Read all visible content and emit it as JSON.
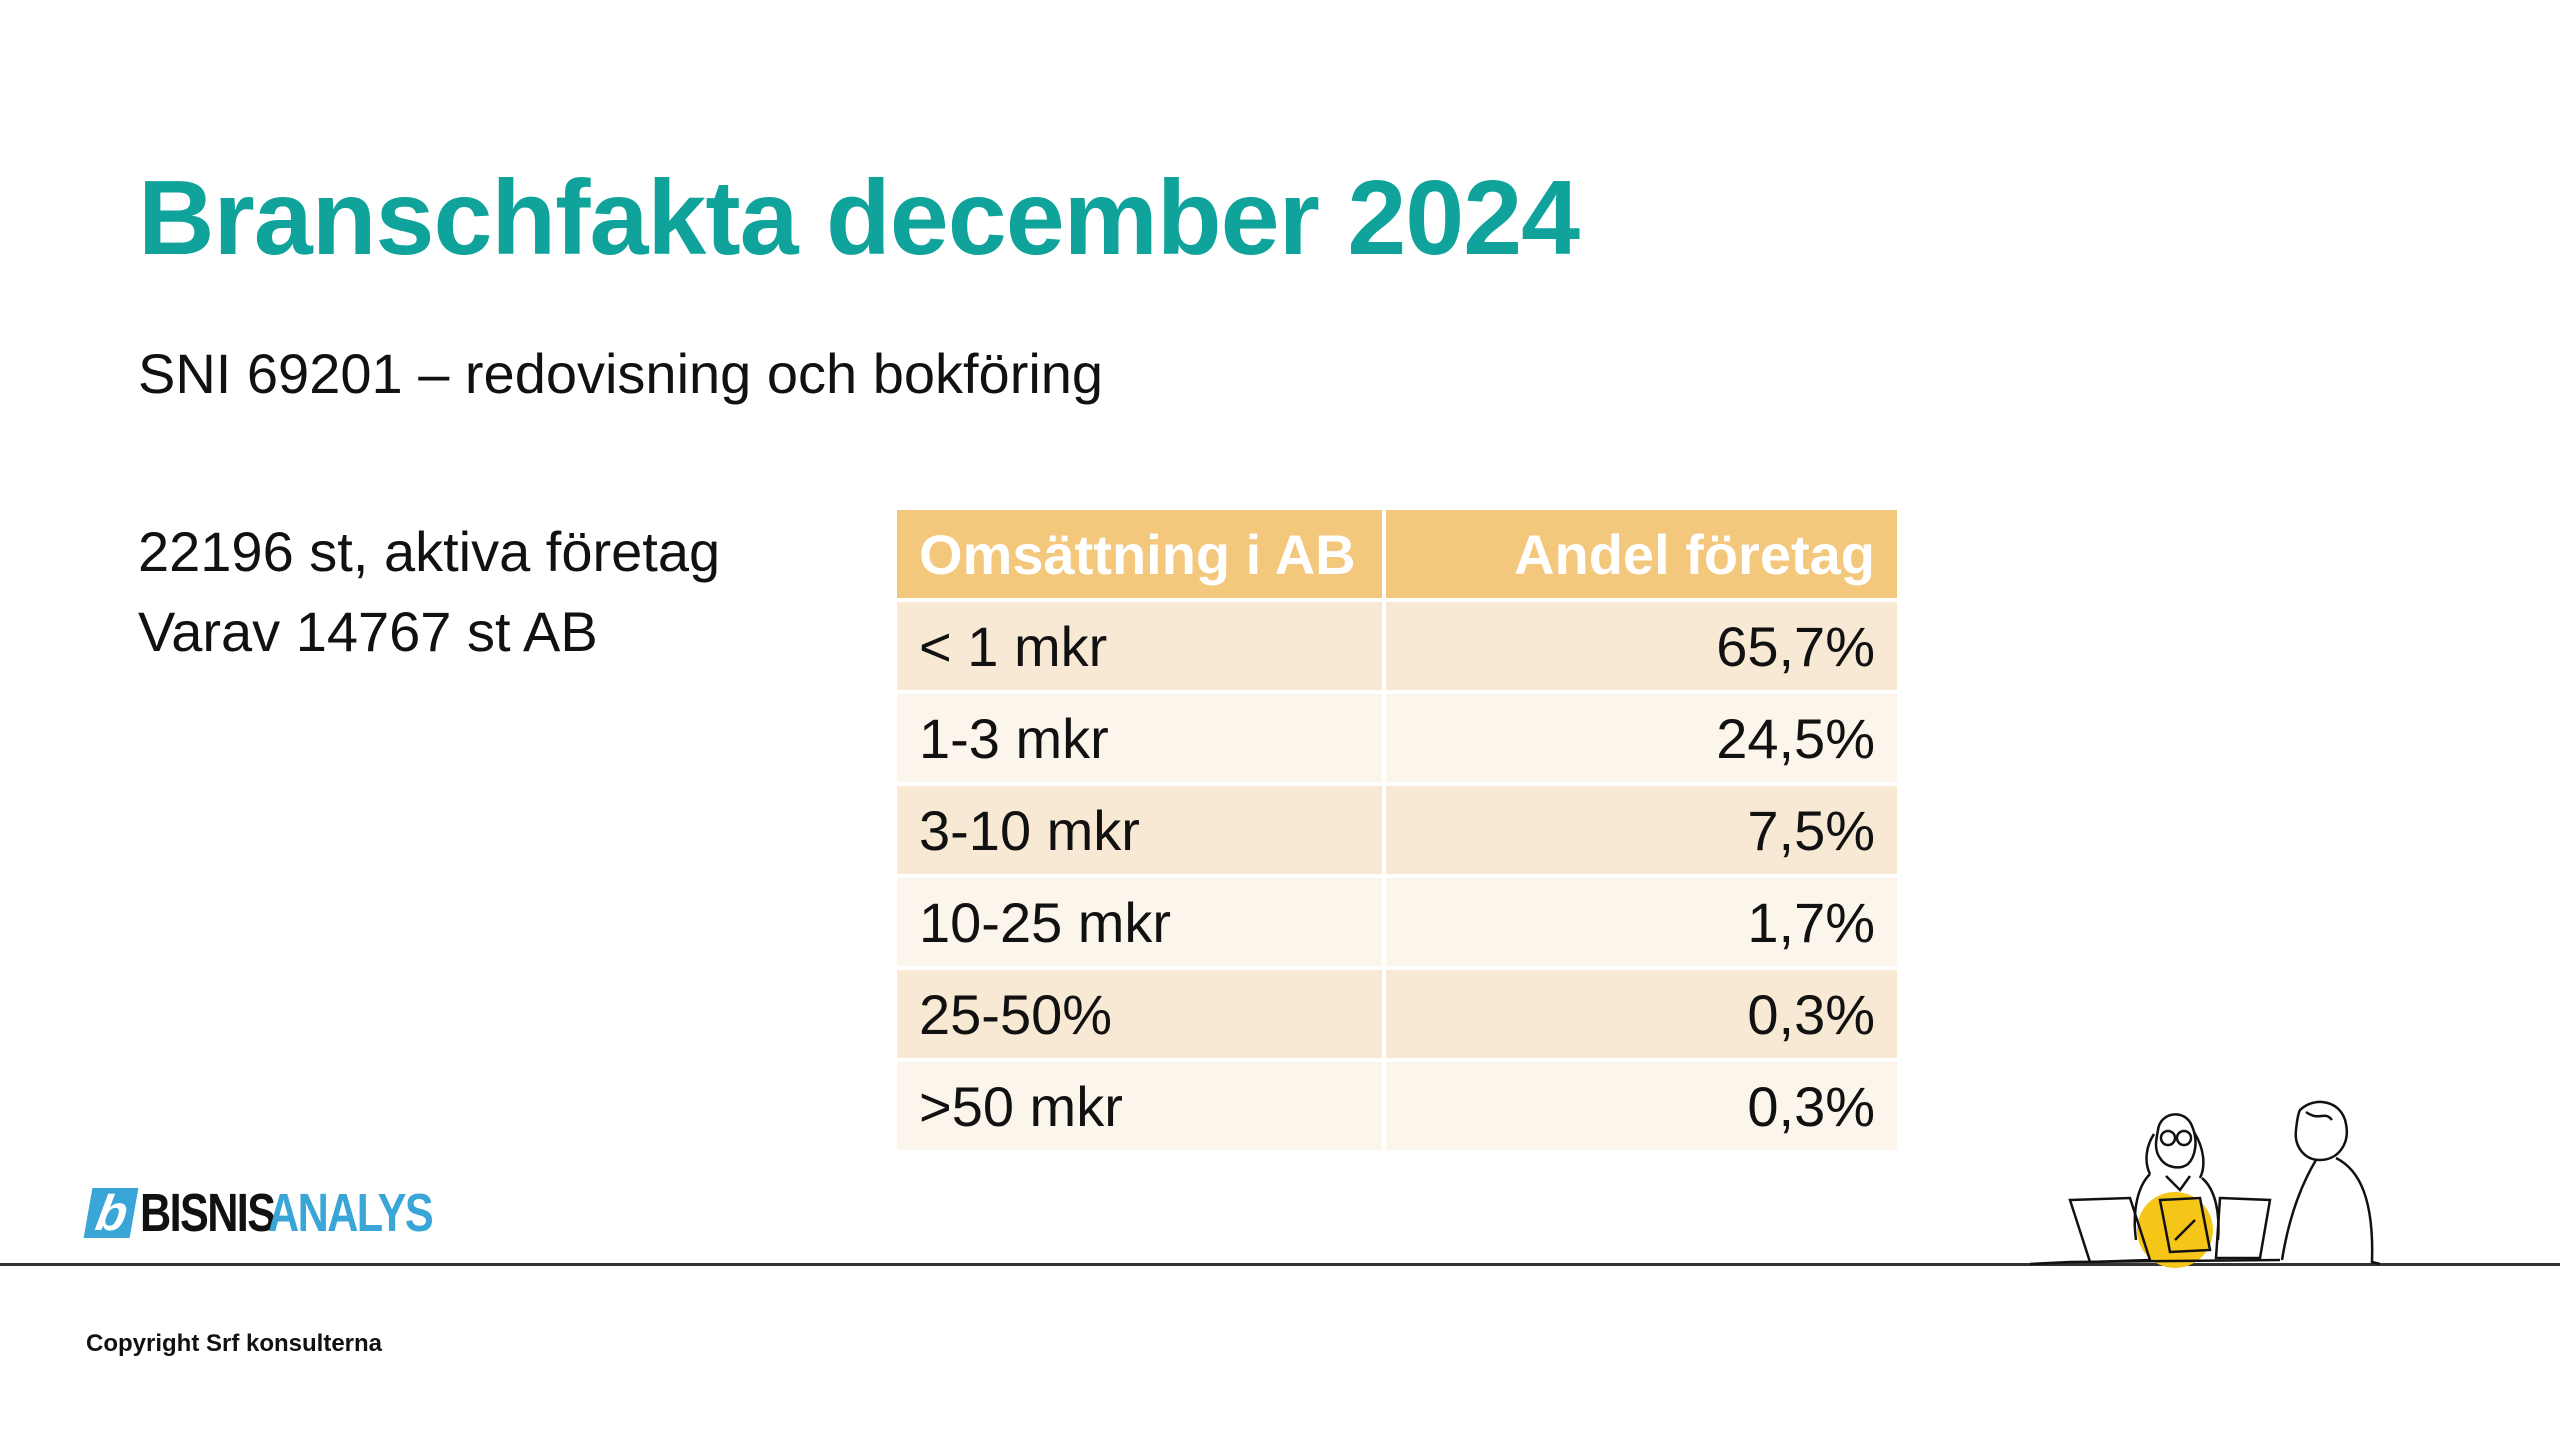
{
  "slide": {
    "title": "Branschfakta december 2024",
    "subtitle": "SNI 69201 – redovisning och bokföring",
    "facts": [
      "22196 st, aktiva företag",
      "Varav 14767 st AB"
    ]
  },
  "table": {
    "headers": [
      "Omsättning i AB",
      "Andel företag"
    ],
    "rows": [
      [
        "< 1 mkr",
        "65,7%"
      ],
      [
        "1-3 mkr",
        "24,5%"
      ],
      [
        "3-10 mkr",
        "7,5%"
      ],
      [
        "10-25 mkr",
        "1,7%"
      ],
      [
        "25-50%",
        "0,3%"
      ],
      [
        ">50 mkr",
        "0,3%"
      ]
    ]
  },
  "logo": {
    "mark": "b",
    "part1": "BISNIS",
    "part2": "ANALYS"
  },
  "footer": {
    "copyright": "Copyright Srf konsulterna"
  },
  "colors": {
    "title": "#10a39b",
    "header_bg": "#f3c77c",
    "row_odd": "#f8e9d4",
    "row_even": "#fcf5ec",
    "logo_blue": "#3aa6d8",
    "accent_yellow": "#f5c518"
  }
}
